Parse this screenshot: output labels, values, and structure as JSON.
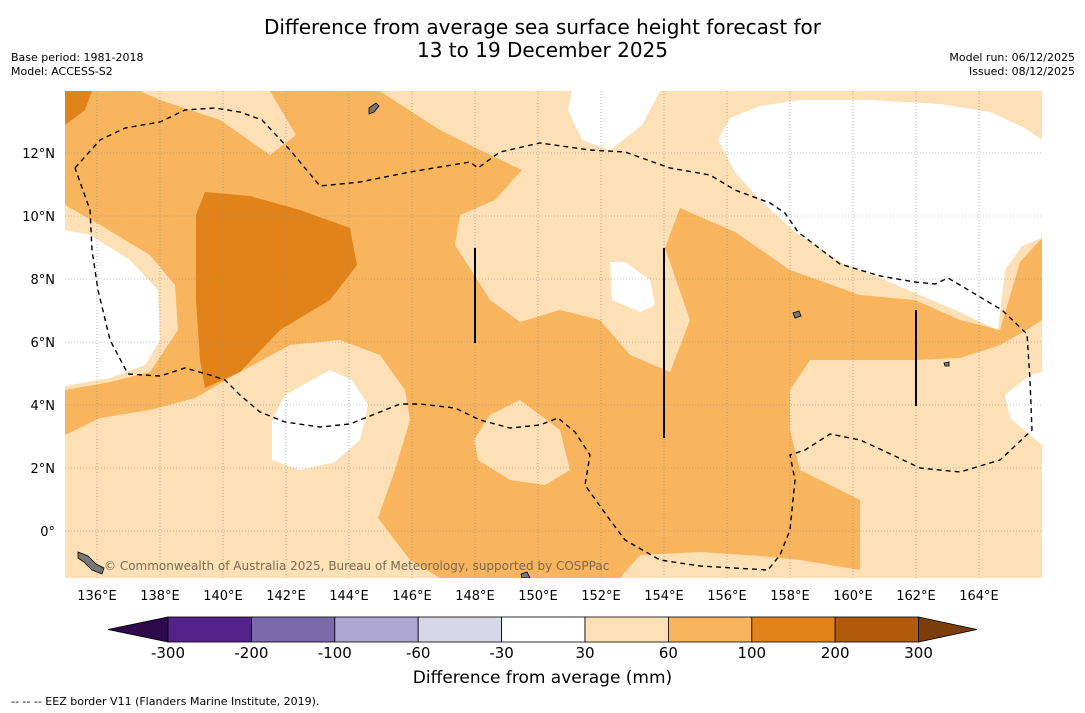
{
  "title_line1": "Difference from average sea surface height forecast for",
  "title_line2": "13 to 19 December 2025",
  "meta_left": {
    "base_period": "Base period: 1981-2018",
    "model": "Model: ACCESS-S2"
  },
  "meta_right": {
    "model_run": "Model run: 06/12/2025",
    "issued": "Issued: 08/12/2025"
  },
  "lat_labels": [
    "12°N",
    "10°N",
    "8°N",
    "6°N",
    "4°N",
    "2°N",
    "0°"
  ],
  "lon_labels": [
    "136°E",
    "138°E",
    "140°E",
    "142°E",
    "144°E",
    "146°E",
    "148°E",
    "150°E",
    "152°E",
    "154°E",
    "156°E",
    "158°E",
    "160°E",
    "162°E",
    "164°E"
  ],
  "copyright": "© Commonwealth of Australia 2025, Bureau of Meteorology, supported by COSPPac",
  "colorbar": {
    "ticks": [
      "-300",
      "-200",
      "-100",
      "-60",
      "-30",
      "30",
      "60",
      "100",
      "200",
      "300"
    ],
    "colors": [
      "#55218a",
      "#7a6aac",
      "#ada6cf",
      "#d7d7ea",
      "#ffffff",
      "#fde0b6",
      "#f9b45e",
      "#e2831a",
      "#b05a0c"
    ],
    "under_color": "#2e0a4d",
    "over_color": "#7a3e06",
    "label": "Difference from average (mm)"
  },
  "legend_note": "--  --  -- EEZ border V11 (Flanders Marine Institute, 2019).",
  "colors": {
    "light": "#fde0b6",
    "medium": "#f9b45e",
    "dark": "#e2831a",
    "neutral": "#ffffff",
    "land": "#777777"
  }
}
